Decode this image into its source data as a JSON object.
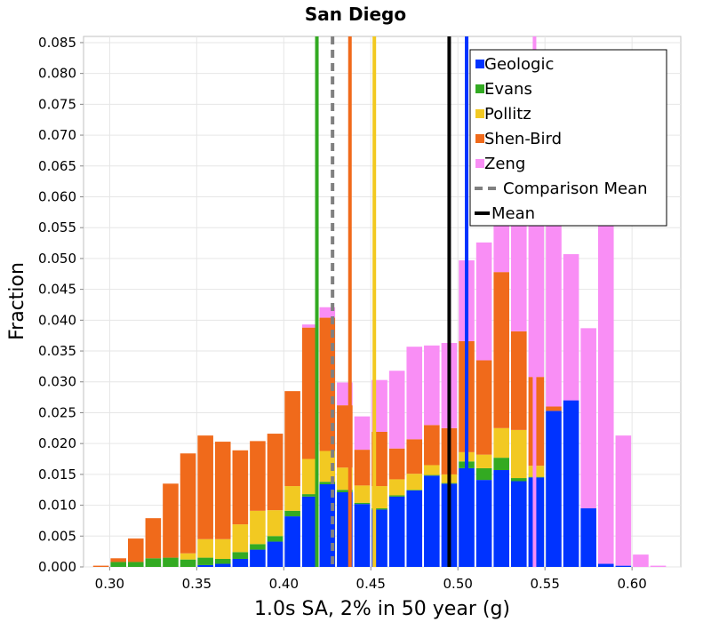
{
  "chart_data": {
    "type": "bar",
    "title": "San Diego",
    "xlabel": "1.0s SA, 2% in 50 year (g)",
    "ylabel": "Fraction",
    "xlim": [
      0.285,
      0.628
    ],
    "ylim": [
      0.0,
      0.086
    ],
    "x_ticks": [
      0.3,
      0.35,
      0.4,
      0.45,
      0.5,
      0.55,
      0.6
    ],
    "x_tick_labels": [
      "0.30",
      "0.35",
      "0.40",
      "0.45",
      "0.50",
      "0.55",
      "0.60"
    ],
    "y_ticks": [
      0.0,
      0.005,
      0.01,
      0.015,
      0.02,
      0.025,
      0.03,
      0.035,
      0.04,
      0.045,
      0.05,
      0.055,
      0.06,
      0.065,
      0.07,
      0.075,
      0.08,
      0.085
    ],
    "y_tick_labels": [
      "0.000",
      "0.005",
      "0.010",
      "0.015",
      "0.020",
      "0.025",
      "0.030",
      "0.035",
      "0.040",
      "0.045",
      "0.050",
      "0.055",
      "0.060",
      "0.065",
      "0.070",
      "0.075",
      "0.080",
      "0.085"
    ],
    "grid": true,
    "legend_position": "top-right",
    "bin_width": 0.01,
    "x": [
      0.295,
      0.305,
      0.315,
      0.325,
      0.335,
      0.345,
      0.355,
      0.365,
      0.375,
      0.385,
      0.395,
      0.405,
      0.415,
      0.425,
      0.435,
      0.445,
      0.455,
      0.465,
      0.475,
      0.485,
      0.495,
      0.505,
      0.515,
      0.525,
      0.535,
      0.545,
      0.555,
      0.565,
      0.575,
      0.585,
      0.595,
      0.605,
      0.615
    ],
    "series": [
      {
        "name": "Geologic",
        "color": "#0033ff",
        "values": [
          0,
          0,
          0,
          0,
          0,
          0,
          0.0003,
          0.0005,
          0.0013,
          0.0028,
          0.0041,
          0.0082,
          0.0114,
          0.0134,
          0.0121,
          0.0102,
          0.0093,
          0.0114,
          0.0124,
          0.0148,
          0.0135,
          0.016,
          0.0141,
          0.0157,
          0.0139,
          0.0145,
          0.0253,
          0.027,
          0.0095,
          0.0005,
          0.0002,
          0,
          0
        ]
      },
      {
        "name": "Evans",
        "color": "#33aa22",
        "values": [
          0,
          0.0008,
          0.0008,
          0.0014,
          0.0015,
          0.0012,
          0.0012,
          0.0008,
          0.0011,
          0.0009,
          0.0009,
          0.0009,
          0.0004,
          0.0004,
          0.0004,
          0.0002,
          0.0002,
          0.0002,
          0.0001,
          0.0001,
          0.0001,
          0.0011,
          0.0019,
          0.002,
          0.0005,
          0.0001,
          0,
          0,
          0,
          0,
          0,
          0,
          0
        ]
      },
      {
        "name": "Pollitz",
        "color": "#f2c922",
        "values": [
          0,
          0,
          0,
          0,
          0,
          0.001,
          0.003,
          0.0032,
          0.0045,
          0.0054,
          0.0042,
          0.004,
          0.0057,
          0.005,
          0.0036,
          0.0028,
          0.0036,
          0.0026,
          0.0026,
          0.0016,
          0.0014,
          0.0015,
          0.0022,
          0.0048,
          0.0078,
          0.0018,
          0,
          0,
          0,
          0,
          0,
          0,
          0
        ]
      },
      {
        "name": "Shen-Bird",
        "color": "#f06a1b",
        "values": [
          0.0002,
          0.0006,
          0.0038,
          0.0065,
          0.012,
          0.0162,
          0.0168,
          0.0158,
          0.012,
          0.0113,
          0.0124,
          0.0154,
          0.0213,
          0.0216,
          0.0101,
          0.0058,
          0.0088,
          0.005,
          0.0056,
          0.0065,
          0.0075,
          0.018,
          0.0153,
          0.0253,
          0.016,
          0.0144,
          0.0007,
          0,
          0,
          0,
          0,
          0,
          0
        ]
      },
      {
        "name": "Zeng",
        "color": "#f98ef5",
        "values": [
          0,
          0,
          0,
          0,
          0,
          0,
          0,
          0,
          0,
          0,
          0,
          0,
          0.0005,
          0.0017,
          0.0037,
          0.0054,
          0.0084,
          0.0126,
          0.015,
          0.0129,
          0.0138,
          0.0131,
          0.0191,
          0.0191,
          0.0191,
          0.0298,
          0.0322,
          0.0237,
          0.0292,
          0.0563,
          0.0211,
          0.002,
          0.0002
        ]
      }
    ],
    "vertical_lines": [
      {
        "name": "Geologic",
        "x": 0.505,
        "color": "#0033ff",
        "style": "solid"
      },
      {
        "name": "Evans",
        "x": 0.419,
        "color": "#33aa22",
        "style": "solid"
      },
      {
        "name": "Pollitz",
        "x": 0.452,
        "color": "#f2c922",
        "style": "solid"
      },
      {
        "name": "Shen-Bird",
        "x": 0.438,
        "color": "#f06a1b",
        "style": "solid"
      },
      {
        "name": "Zeng",
        "x": 0.544,
        "color": "#f98ef5",
        "style": "solid"
      },
      {
        "name": "Comparison Mean",
        "x": 0.428,
        "color": "#808080",
        "style": "dashed"
      },
      {
        "name": "Mean",
        "x": 0.495,
        "color": "#000000",
        "style": "solid"
      }
    ],
    "legend": [
      {
        "label": "Geologic",
        "color": "#0033ff",
        "kind": "box"
      },
      {
        "label": "Evans",
        "color": "#33aa22",
        "kind": "box"
      },
      {
        "label": "Pollitz",
        "color": "#f2c922",
        "kind": "box"
      },
      {
        "label": "Shen-Bird",
        "color": "#f06a1b",
        "kind": "box"
      },
      {
        "label": "Zeng",
        "color": "#f98ef5",
        "kind": "box"
      },
      {
        "label": "Comparison Mean",
        "color": "#808080",
        "kind": "dash"
      },
      {
        "label": "Mean",
        "color": "#000000",
        "kind": "line"
      }
    ]
  }
}
